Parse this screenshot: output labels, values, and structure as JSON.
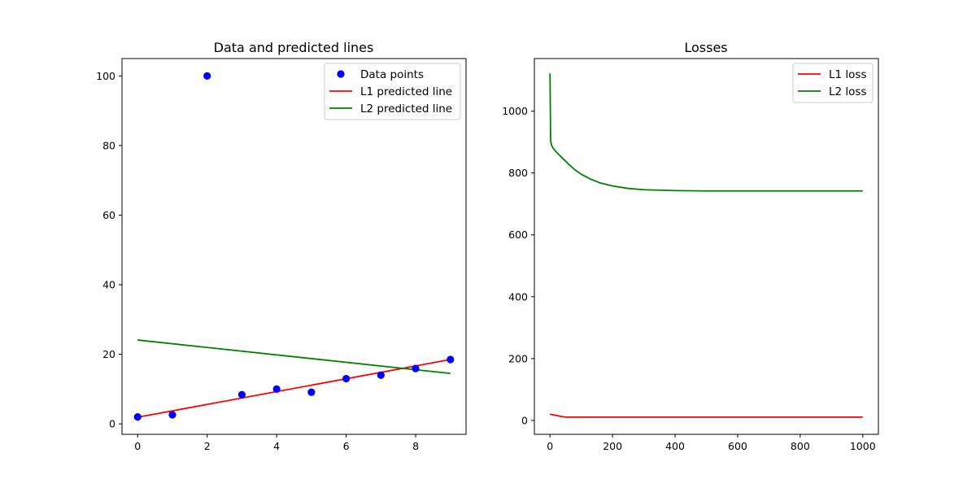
{
  "chart_data": [
    {
      "type": "scatter",
      "title": "Data and predicted lines",
      "xlabel": "",
      "ylabel": "",
      "xlim": [
        -0.45,
        9.45
      ],
      "ylim": [
        -3.0,
        105.0
      ],
      "xticks": [
        0,
        2,
        4,
        6,
        8
      ],
      "yticks": [
        0,
        20,
        40,
        60,
        80,
        100
      ],
      "grid": false,
      "legend": "top-right",
      "series": [
        {
          "name": "Data points",
          "kind": "scatter",
          "color": "#0000ff",
          "x": [
            0,
            1,
            2,
            3,
            4,
            5,
            6,
            7,
            8,
            9
          ],
          "y": [
            2,
            2.6,
            100,
            8.4,
            10,
            9.1,
            13,
            14,
            15.9,
            18.5
          ]
        },
        {
          "name": "L1 predicted line",
          "kind": "line",
          "color": "#ff0000",
          "x": [
            0,
            9
          ],
          "y": [
            1.9,
            18.5
          ]
        },
        {
          "name": "L2 predicted line",
          "kind": "line",
          "color": "#008000",
          "x": [
            0,
            9
          ],
          "y": [
            24.1,
            14.5
          ]
        }
      ]
    },
    {
      "type": "line",
      "title": "Losses",
      "xlabel": "",
      "ylabel": "",
      "xlim": [
        -50,
        1050
      ],
      "ylim": [
        -45,
        1170
      ],
      "xticks": [
        0,
        200,
        400,
        600,
        800,
        1000
      ],
      "yticks": [
        0,
        200,
        400,
        600,
        800,
        1000
      ],
      "grid": false,
      "legend": "top-right",
      "series": [
        {
          "name": "L1 loss",
          "kind": "line",
          "color": "#ff0000",
          "x": [
            0,
            10,
            20,
            30,
            40,
            50,
            100,
            200,
            400,
            600,
            800,
            1000
          ],
          "y": [
            20,
            18,
            16,
            14,
            12,
            10.5,
            10.5,
            10.5,
            10.5,
            10.5,
            10.5,
            10.5
          ]
        },
        {
          "name": "L2 loss",
          "kind": "line",
          "color": "#008000",
          "x": [
            0,
            2,
            5,
            10,
            20,
            40,
            60,
            80,
            100,
            130,
            160,
            200,
            250,
            300,
            400,
            500,
            600,
            800,
            1000
          ],
          "y": [
            1122,
            905,
            890,
            880,
            868,
            848,
            828,
            810,
            796,
            780,
            768,
            758,
            750,
            746,
            743,
            742,
            742,
            742,
            742
          ]
        }
      ]
    }
  ]
}
